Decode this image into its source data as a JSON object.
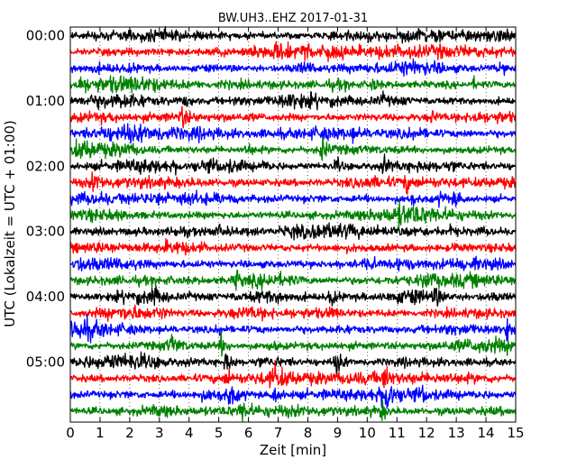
{
  "chart_data": {
    "type": "line",
    "title": "BW.UH3..EHZ 2017-01-31",
    "xlabel": "Zeit  [min]",
    "ylabel": "UTC (Lokalzeit = UTC + 01:00)",
    "xlim": [
      0,
      15
    ],
    "x_ticks": [
      "0",
      "1",
      "2",
      "3",
      "4",
      "5",
      "6",
      "7",
      "8",
      "9",
      "10",
      "11",
      "12",
      "13",
      "14",
      "15"
    ],
    "y_ticks": [
      "00:00",
      "01:00",
      "02:00",
      "03:00",
      "04:00",
      "05:00"
    ],
    "grid": "x-dotted",
    "trace_minutes": 15,
    "traces_per_hour": 4,
    "track_count": 24,
    "colors": [
      "#000000",
      "#ff0000",
      "#0000ff",
      "#008000"
    ],
    "event_tracks": [
      {
        "track": 1,
        "events": [
          [
            5.0,
            0.25
          ],
          [
            7.0,
            0.2
          ],
          [
            12.5,
            0.2
          ]
        ]
      },
      {
        "track": 2,
        "events": [
          [
            2.0,
            0.25
          ],
          [
            14.5,
            0.4
          ]
        ]
      },
      {
        "track": 3,
        "events": [
          [
            0.4,
            0.35
          ],
          [
            10.2,
            0.6
          ],
          [
            13.6,
            0.3
          ]
        ]
      },
      {
        "track": 4,
        "events": [
          [
            3.9,
            0.4
          ],
          [
            5.5,
            0.25
          ],
          [
            10.5,
            0.2
          ]
        ]
      },
      {
        "track": 5,
        "events": [
          [
            3.8,
            0.7
          ],
          [
            12.2,
            0.4
          ],
          [
            13.6,
            0.5
          ]
        ]
      },
      {
        "track": 6,
        "events": [
          [
            9.5,
            0.2
          ],
          [
            13.4,
            0.25
          ]
        ]
      },
      {
        "track": 7,
        "events": [
          [
            6.0,
            0.5
          ],
          [
            8.5,
            0.9
          ]
        ]
      },
      {
        "track": 8,
        "events": [
          [
            6.5,
            0.35
          ],
          [
            9.0,
            0.45
          ],
          [
            10.6,
            0.6
          ]
        ]
      },
      {
        "track": 9,
        "events": [
          [
            0.8,
            0.6
          ],
          [
            11.3,
            0.55
          ]
        ]
      },
      {
        "track": 10,
        "events": [
          [
            11.5,
            0.5
          ],
          [
            12.5,
            0.5
          ],
          [
            13.0,
            0.6
          ]
        ]
      },
      {
        "track": 11,
        "events": [
          [
            11.1,
            0.6
          ],
          [
            11.5,
            0.4
          ]
        ]
      },
      {
        "track": 12,
        "events": [
          [
            5.0,
            0.3
          ],
          [
            8.3,
            0.4
          ],
          [
            12.8,
            0.3
          ]
        ]
      },
      {
        "track": 13,
        "events": [
          [
            4.4,
            0.25
          ],
          [
            13.0,
            0.3
          ]
        ]
      },
      {
        "track": 14,
        "events": [
          [
            13.2,
            0.3
          ]
        ]
      },
      {
        "track": 15,
        "events": [
          [
            5.6,
            0.8
          ],
          [
            12.0,
            0.6
          ]
        ]
      },
      {
        "track": 16,
        "events": [
          [
            2.8,
            0.5
          ],
          [
            8.8,
            0.9
          ],
          [
            12.3,
            0.6
          ]
        ]
      },
      {
        "track": 17,
        "events": [
          [
            3.0,
            0.5
          ],
          [
            8.8,
            0.35
          ]
        ]
      },
      {
        "track": 18,
        "events": [
          [
            14.7,
            1.0
          ],
          [
            5.0,
            0.3
          ]
        ]
      },
      {
        "track": 19,
        "events": [
          [
            3.4,
            0.7
          ],
          [
            5.1,
            0.8
          ],
          [
            6.8,
            0.35
          ]
        ]
      },
      {
        "track": 20,
        "events": [
          [
            5.3,
            0.9
          ],
          [
            9.0,
            0.9
          ]
        ]
      },
      {
        "track": 21,
        "events": [
          [
            5.3,
            0.6
          ],
          [
            6.9,
            0.7
          ],
          [
            10.6,
            0.9
          ]
        ]
      },
      {
        "track": 22,
        "events": [
          [
            5.4,
            0.7
          ],
          [
            6.9,
            0.8
          ],
          [
            10.7,
            2.2
          ],
          [
            11.9,
            0.5
          ]
        ]
      },
      {
        "track": 23,
        "events": [
          [
            5.8,
            0.8
          ],
          [
            10.5,
            0.6
          ]
        ]
      }
    ]
  }
}
